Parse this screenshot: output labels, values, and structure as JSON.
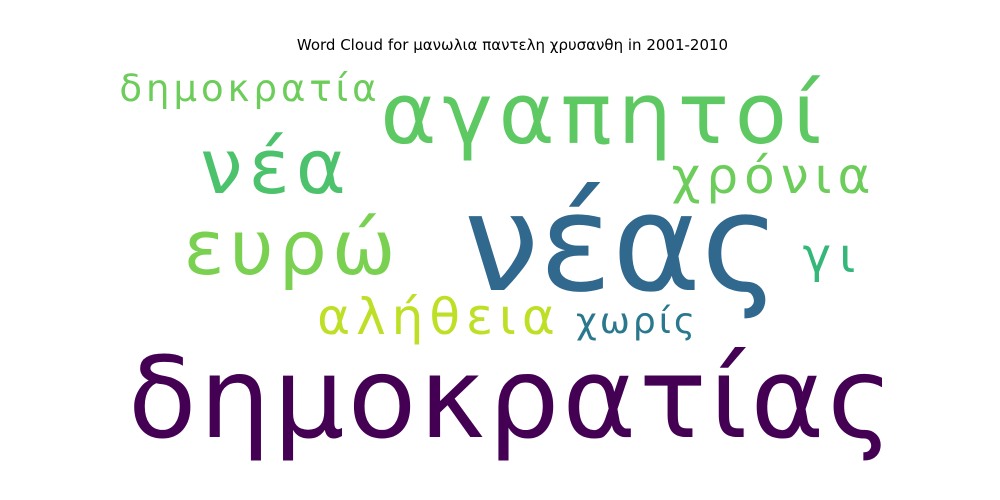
{
  "chart_data": {
    "type": "wordcloud",
    "title": "Word Cloud for μανωλια παντελη χρυσανθη in 2001-2010",
    "words": [
      {
        "text": "δημοκρατίας",
        "weight": 1.0,
        "color": "#440154"
      },
      {
        "text": "νέας",
        "weight": 0.95,
        "color": "#31688e"
      },
      {
        "text": "αγαπητοί",
        "weight": 0.7,
        "color": "#5ec962"
      },
      {
        "text": "νέα",
        "weight": 0.55,
        "color": "#4cc26c"
      },
      {
        "text": "ευρώ",
        "weight": 0.55,
        "color": "#7ad151"
      },
      {
        "text": "χρόνια",
        "weight": 0.4,
        "color": "#6ccd5a"
      },
      {
        "text": "αλήθεια",
        "weight": 0.38,
        "color": "#bddf26"
      },
      {
        "text": "γι",
        "weight": 0.35,
        "color": "#35b779"
      },
      {
        "text": "δημοκρατία",
        "weight": 0.3,
        "color": "#6ccd5a"
      },
      {
        "text": "χωρίς",
        "weight": 0.28,
        "color": "#2a788e"
      }
    ]
  }
}
